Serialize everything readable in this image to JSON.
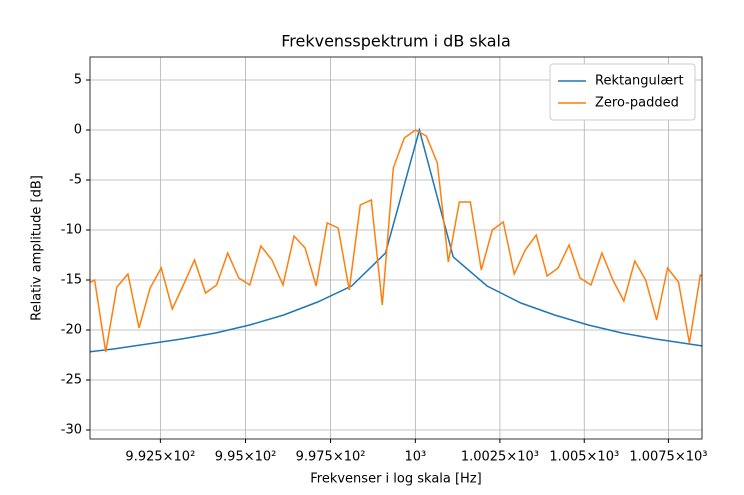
{
  "chart_data": {
    "type": "line",
    "title": "Frekvensspektrum i dB skala",
    "xlabel": "Frekvenser i log skala [Hz]",
    "ylabel": "Relativ amplitude [dB]",
    "xscale": "log",
    "grid": true,
    "legend": "upper right",
    "xlim": [
      990.44,
      1008.5
    ],
    "ylim": [
      -30.9,
      7.3
    ],
    "xticks": [
      {
        "value": 992.5,
        "label": "9.925×10²"
      },
      {
        "value": 995,
        "label": "9.95×10²"
      },
      {
        "value": 997.5,
        "label": "9.975×10²"
      },
      {
        "value": 1000,
        "label": "10³"
      },
      {
        "value": 1002.5,
        "label": "1.0025×10³"
      },
      {
        "value": 1005,
        "label": "1.005×10³"
      },
      {
        "value": 1007.5,
        "label": "1.0075×10³"
      }
    ],
    "yticks": [
      -30,
      -25,
      -20,
      -15,
      -10,
      -5,
      0,
      5
    ],
    "series": [
      {
        "name": "Rektangulært",
        "color": "#1f77b4",
        "x": [
          990.12,
          991.12,
          992.12,
          993.12,
          994.12,
          995.12,
          996.12,
          997.12,
          998.12,
          999.12,
          1000.12,
          1001.12,
          1002.12,
          1003.12,
          1004.12,
          1005.12,
          1006.12,
          1007.12,
          1008.12,
          1009.12
        ],
        "values": [
          -22.3,
          -21.9,
          -21.4,
          -20.9,
          -20.3,
          -19.5,
          -18.5,
          -17.2,
          -15.6,
          -12.3,
          0,
          -12.7,
          -15.6,
          -17.3,
          -18.5,
          -19.5,
          -20.3,
          -20.9,
          -21.4,
          -21.9
        ]
      },
      {
        "name": "Zero-padded",
        "color": "#ff7f0e",
        "x": [
          990.25,
          990.575,
          990.9,
          991.225,
          991.55,
          991.875,
          992.2,
          992.525,
          992.85,
          993.175,
          993.5,
          993.825,
          994.15,
          994.475,
          994.8,
          995.125,
          995.45,
          995.775,
          996.1,
          996.425,
          996.75,
          997.075,
          997.4,
          997.725,
          998.05,
          998.375,
          998.7,
          999.025,
          999.35,
          999.675,
          1000,
          1000.325,
          1000.65,
          1000.975,
          1001.3,
          1001.625,
          1001.95,
          1002.275,
          1002.6,
          1002.925,
          1003.25,
          1003.575,
          1003.9,
          1004.225,
          1004.55,
          1004.875,
          1005.2,
          1005.525,
          1005.85,
          1006.175,
          1006.5,
          1006.825,
          1007.15,
          1007.475,
          1007.8,
          1008.125,
          1008.45,
          1008.775
        ],
        "values": [
          -15.6,
          -15.0,
          -22.2,
          -15.7,
          -14.4,
          -19.8,
          -15.8,
          -13.8,
          -17.9,
          -15.5,
          -13.0,
          -16.3,
          -15.5,
          -12.3,
          -14.8,
          -15.5,
          -11.6,
          -13.0,
          -15.5,
          -10.6,
          -11.8,
          -15.6,
          -9.3,
          -9.8,
          -16.0,
          -7.5,
          -7.0,
          -17.5,
          -3.8,
          -0.8,
          0,
          -0.6,
          -3.3,
          -13.2,
          -7.2,
          -7.2,
          -14.0,
          -10.0,
          -9.2,
          -14.4,
          -12.0,
          -10.5,
          -14.6,
          -13.8,
          -11.5,
          -14.8,
          -15.5,
          -12.3,
          -15.0,
          -17.1,
          -13.1,
          -15.0,
          -19.0,
          -13.8,
          -15.2,
          -21.3,
          -14.5,
          -15.1
        ]
      }
    ]
  }
}
